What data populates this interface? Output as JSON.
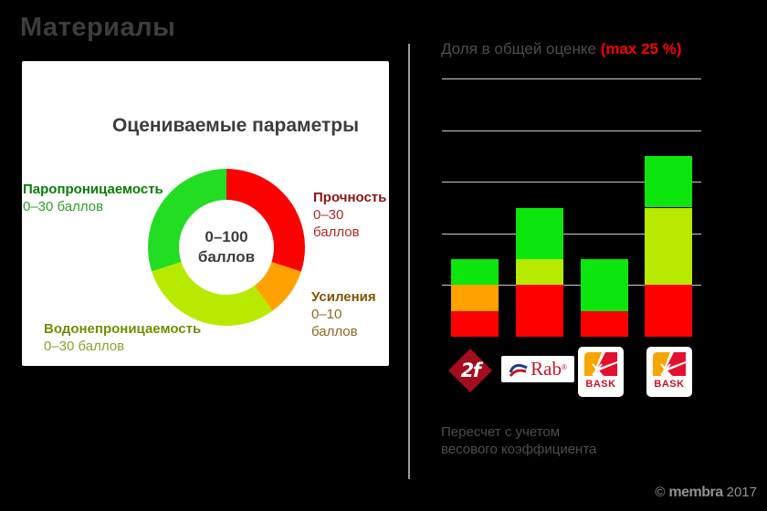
{
  "slide": {
    "title": "Материалы"
  },
  "copyright": {
    "symbol": "©",
    "brand": "membra",
    "year": "2017"
  },
  "palette": {
    "red": "#fb0202",
    "orange": "#ffa200",
    "chartreuse": "#b8ea00",
    "green": "#10e010",
    "title_gray": "#3d3d3d",
    "panel_gray": "#4d4d4d",
    "accent_red": "#fe0000",
    "copyright_gray": "#919191",
    "gridline": "#c9c9c9",
    "divider": "#9b9b9b",
    "label_green_bold": "#077d07",
    "label_green": "#2fa02f",
    "label_red_bold": "#8b1414",
    "label_red": "#ab2a2a",
    "label_brown_bold": "#815500",
    "label_brown": "#8a6a25",
    "label_olive_bold": "#6e8f00",
    "label_olive": "#87a52d"
  },
  "donut_panel": {
    "title": "Оцениваемые параметры",
    "center_line1": "0–100",
    "center_line2": "баллов",
    "labels": [
      {
        "name": "Паропроницаемость",
        "range": "0–30 баллов"
      },
      {
        "name": "Прочность",
        "range": "0–30 баллов"
      },
      {
        "name": "Усиления",
        "range": "0–10 баллов"
      },
      {
        "name": "Водонепроницаемость",
        "range": "0–30 баллов"
      }
    ]
  },
  "bar_panel": {
    "title_gray": "Доля в общей оценке ",
    "title_red": "(max 25 %)",
    "footnote_line1": "Пересчет с учетом",
    "footnote_line2": "весового коэффициента"
  },
  "logos": {
    "redfox_glyph": "2f",
    "rab_text": "Rab",
    "rab_reg": "®",
    "bask_text": "BASK"
  },
  "chart_data": [
    {
      "type": "pie",
      "subtype": "donut",
      "title": "Оцениваемые параметры",
      "center_label": "0–100 баллов",
      "start_angle_deg": 0,
      "direction": "clockwise",
      "total": 100,
      "slices": [
        {
          "label": "Прочность",
          "range": "0–30 баллов",
          "value": 30,
          "color": "#fb0202"
        },
        {
          "label": "Усиления",
          "range": "0–10 баллов",
          "value": 10,
          "color": "#ffa200"
        },
        {
          "label": "Водонепроницаемость",
          "range": "0–30 баллов",
          "value": 30,
          "color": "#b8ea00"
        },
        {
          "label": "Паропроницаемость",
          "range": "0–30 баллов",
          "value": 30,
          "color": "#22dd22"
        }
      ]
    },
    {
      "type": "bar",
      "subtype": "stacked",
      "title": "Доля в общей оценке (max 25 %)",
      "categories": [
        "Red Fox",
        "Rab",
        "BASK",
        "BASK"
      ],
      "series": [
        {
          "name": "Прочность",
          "color": "#ff0000",
          "values": [
            2.5,
            5,
            2.5,
            5
          ]
        },
        {
          "name": "Усиления",
          "color": "#ffa200",
          "values": [
            2.5,
            0,
            0,
            0
          ]
        },
        {
          "name": "Водонепроницаемость",
          "color": "#b8ea00",
          "values": [
            0,
            2.5,
            0,
            7.5
          ]
        },
        {
          "name": "Паропроницаемость",
          "color": "#0ce60c",
          "values": [
            2.5,
            5,
            5,
            5
          ]
        }
      ],
      "stack_order": "bottom-to-top",
      "ylim": [
        0,
        25
      ],
      "gridline_step": 5,
      "units": "% of total score",
      "grid": true,
      "legend": false
    }
  ]
}
